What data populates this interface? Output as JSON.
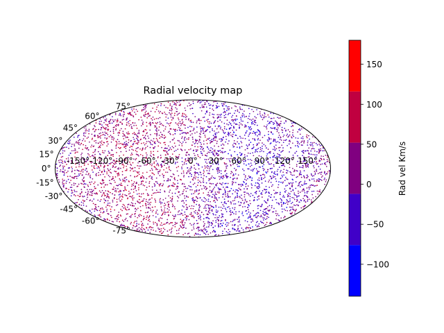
{
  "chart_data": {
    "type": "scatter",
    "projection": "mollweide",
    "title": "Radial velocity map",
    "xlabel": "",
    "ylabel": "",
    "xlim": [
      -180,
      180
    ],
    "ylim": [
      -90,
      90
    ],
    "grid": false,
    "lon_ticks": [
      "-150°",
      "-120°",
      "-90°",
      "-60°",
      "-30°",
      "0°",
      "30°",
      "60°",
      "90°",
      "120°",
      "150°"
    ],
    "lat_ticks": [
      "-75°",
      "-60°",
      "-45°",
      "-30°",
      "-15°",
      "0°",
      "15°",
      "30°",
      "45°",
      "60°",
      "75°"
    ],
    "lon_tick_values": [
      -150,
      -120,
      -90,
      -60,
      -30,
      0,
      30,
      60,
      90,
      120,
      150
    ],
    "lat_tick_values": [
      -75,
      -60,
      -45,
      -30,
      -15,
      0,
      15,
      30,
      45,
      60,
      75
    ],
    "colorbar": {
      "label": "Rad vel Km/s",
      "range": [
        -140,
        180
      ],
      "ticks": [
        -100,
        -50,
        0,
        50,
        100,
        150
      ],
      "tick_labels": [
        "−100",
        "−50",
        "0",
        "50",
        "100",
        "150"
      ],
      "bins": [
        {
          "from": -140,
          "to": -76,
          "color": "#0000ff"
        },
        {
          "from": -76,
          "to": -12,
          "color": "#4000c8"
        },
        {
          "from": -12,
          "to": 52,
          "color": "#800080"
        },
        {
          "from": 52,
          "to": 116,
          "color": "#c00040"
        },
        {
          "from": 116,
          "to": 180,
          "color": "#ff0000"
        }
      ]
    },
    "marker": {
      "color_by": "radial_velocity",
      "size": "small"
    }
  }
}
